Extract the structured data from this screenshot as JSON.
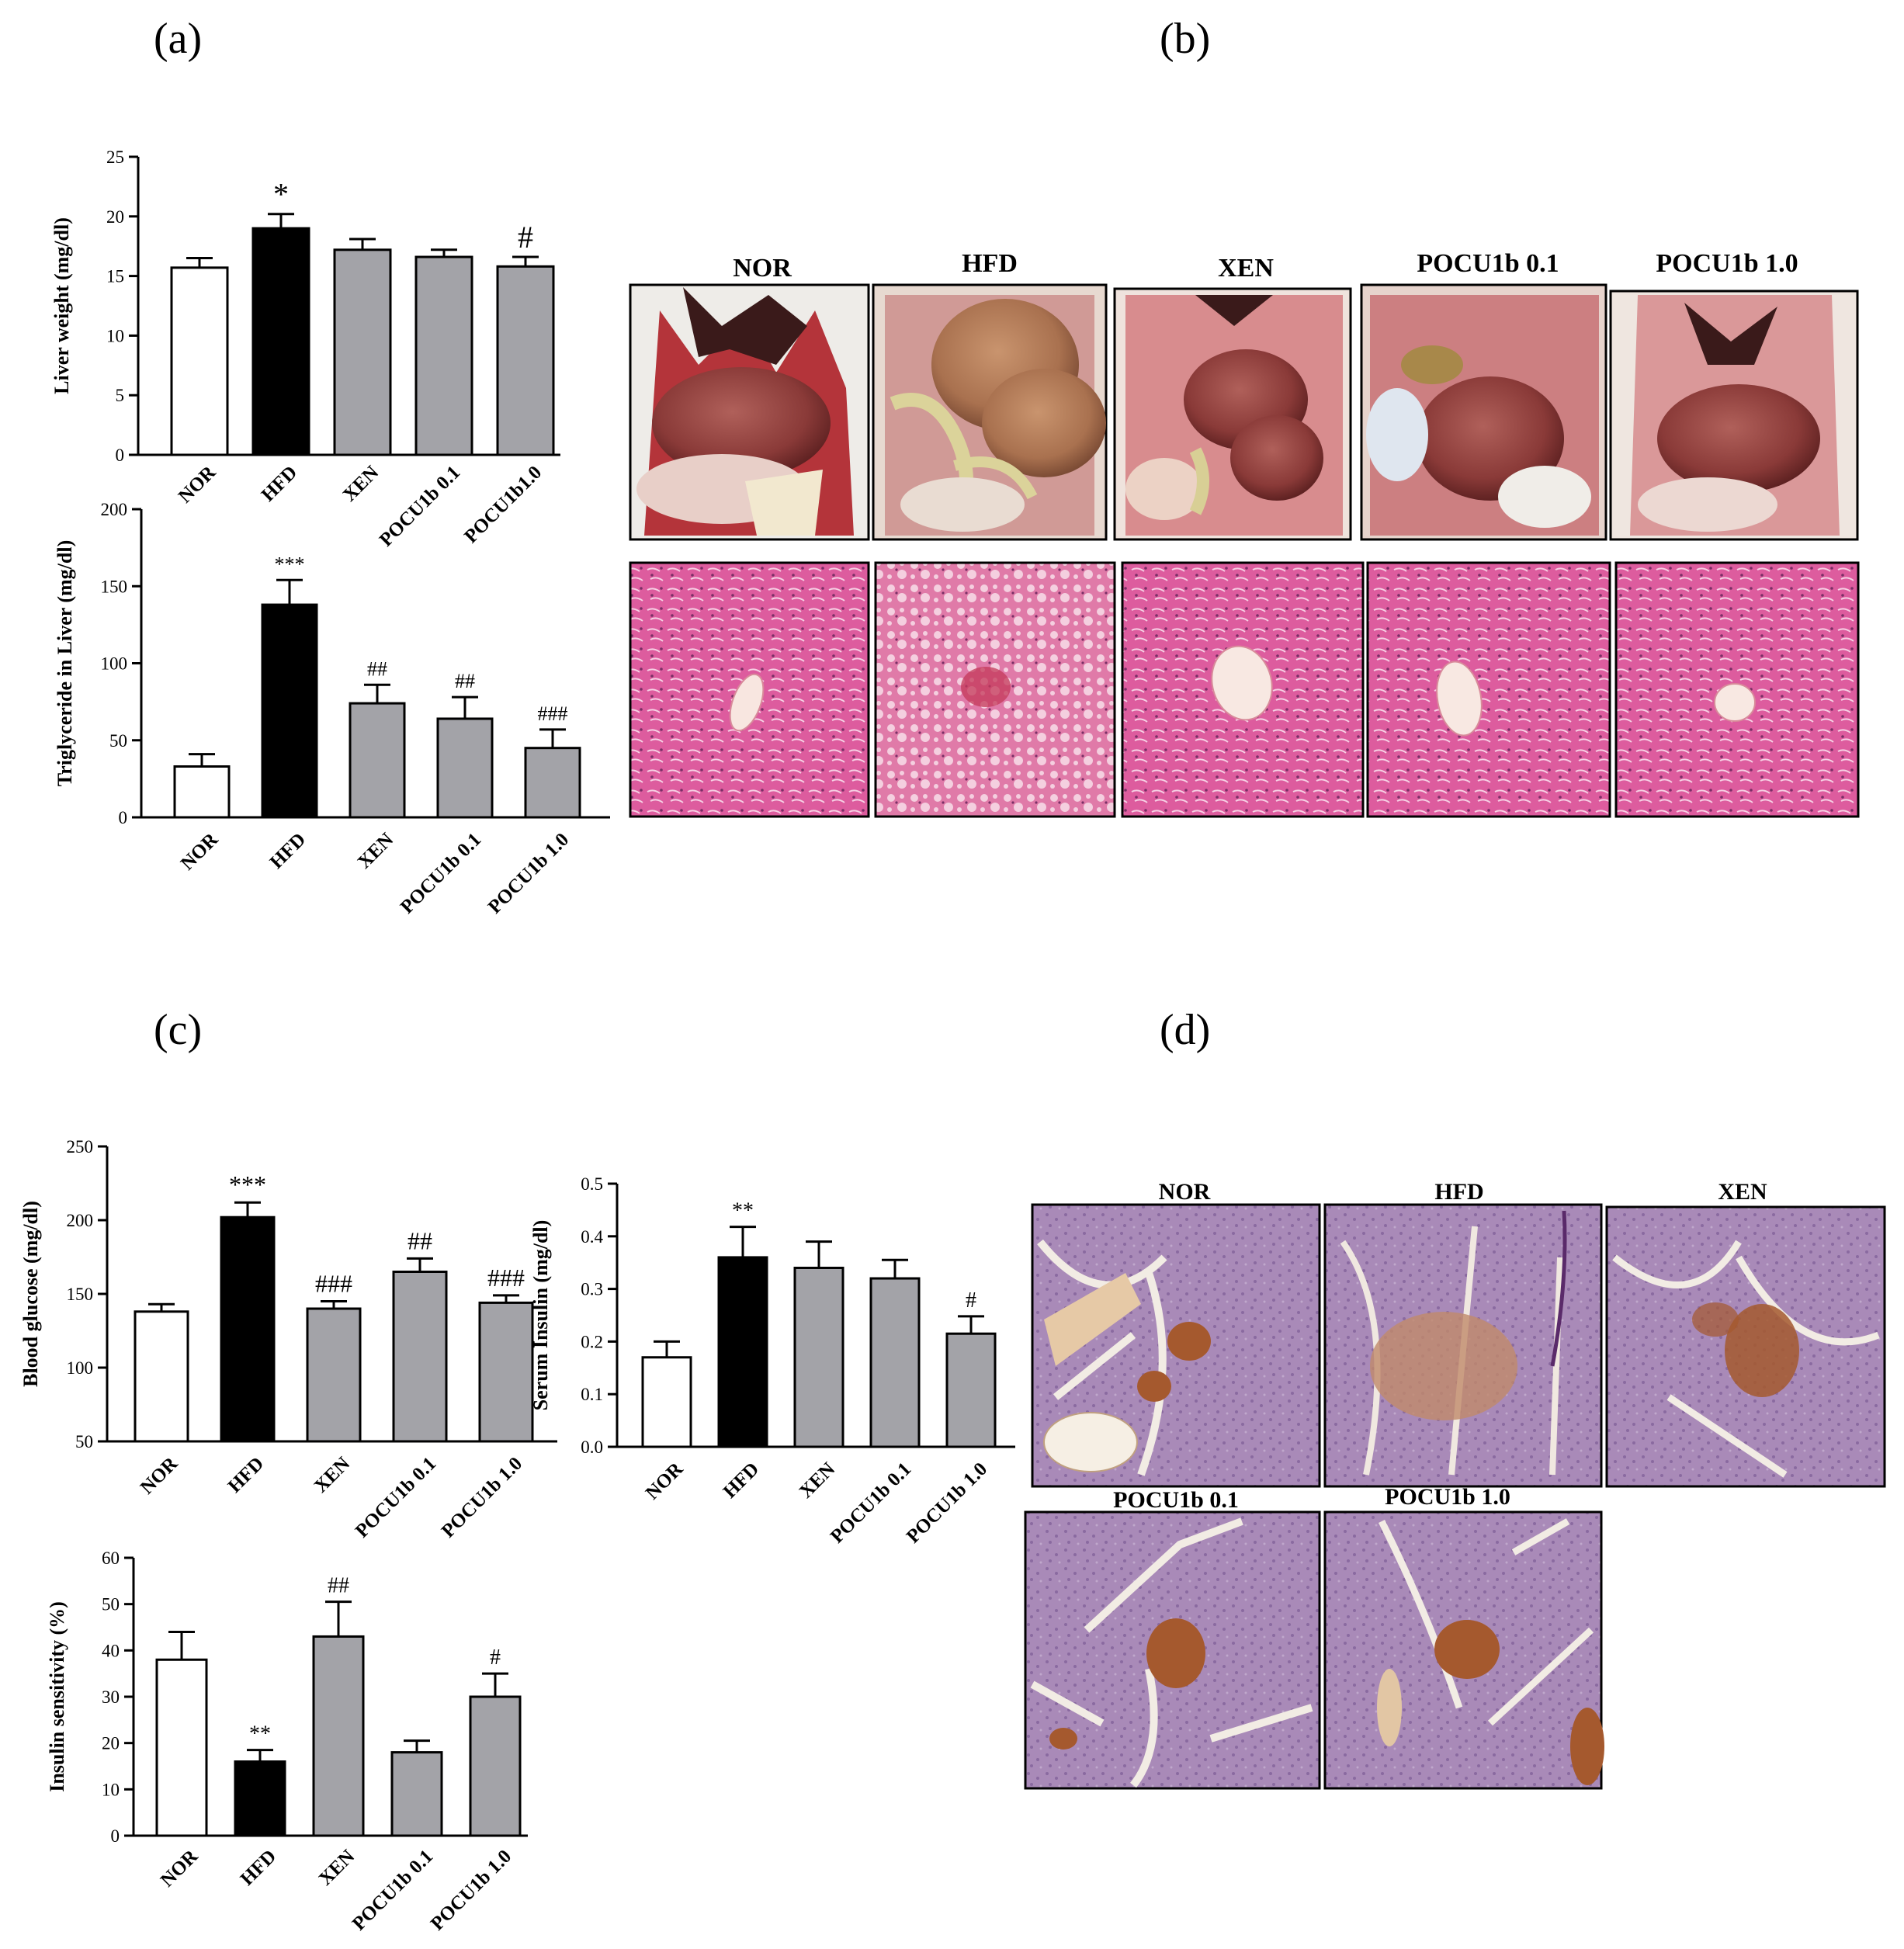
{
  "panel_labels": {
    "a": "(a)",
    "b": "(b)",
    "c": "(c)",
    "d": "(d)"
  },
  "colors": {
    "NOR": "#ffffff",
    "HFD": "#000000",
    "treatment": "#a3a3a8",
    "he_stain": "#dc5b9c",
    "ihc_background": "#a98ab8",
    "ihc_islet": "#a5592e"
  },
  "chart_data": [
    {
      "id": "liver-weight",
      "type": "bar",
      "ylabel": "Liver weight (mg/dl)",
      "categories": [
        "NOR",
        "HFD",
        "XEN",
        "POCU1b 0.1",
        "POCU1b1.0"
      ],
      "values": [
        15.7,
        19.0,
        17.2,
        16.6,
        15.8
      ],
      "errors": [
        0.8,
        1.2,
        0.9,
        0.6,
        0.8
      ],
      "annotations": [
        "",
        "*",
        "",
        "",
        "#"
      ],
      "ylim": [
        0,
        25
      ],
      "yticks": [
        0,
        5,
        10,
        15,
        20,
        25
      ],
      "bar_colors": [
        "NOR",
        "HFD",
        "treatment",
        "treatment",
        "treatment"
      ]
    },
    {
      "id": "liver-triglyceride",
      "type": "bar",
      "ylabel": "Triglyceride in Liver (mg/dl)",
      "categories": [
        "NOR",
        "HFD",
        "XEN",
        "POCU1b 0.1",
        "POCU1b 1.0"
      ],
      "values": [
        33,
        138,
        74,
        64,
        45
      ],
      "errors": [
        8,
        16,
        12,
        14,
        12
      ],
      "annotations": [
        "",
        "***",
        "##",
        "##",
        "###"
      ],
      "ylim": [
        0,
        200
      ],
      "yticks": [
        0,
        50,
        100,
        150,
        200
      ],
      "bar_colors": [
        "NOR",
        "HFD",
        "treatment",
        "treatment",
        "treatment"
      ]
    },
    {
      "id": "blood-glucose",
      "type": "bar",
      "ylabel": "Blood glucose (mg/dl)",
      "categories": [
        "NOR",
        "HFD",
        "XEN",
        "POCU1b 0.1",
        "POCU1b 1.0"
      ],
      "values": [
        138,
        202,
        140,
        165,
        144
      ],
      "errors": [
        5,
        10,
        5,
        9,
        5
      ],
      "annotations": [
        "",
        "***",
        "###",
        "##",
        "###"
      ],
      "ylim": [
        50,
        250
      ],
      "yticks": [
        50,
        100,
        150,
        200,
        250
      ],
      "bar_colors": [
        "NOR",
        "HFD",
        "treatment",
        "treatment",
        "treatment"
      ]
    },
    {
      "id": "serum-insulin",
      "type": "bar",
      "ylabel": "Serum Insulin (mg/dl)",
      "categories": [
        "NOR",
        "HFD",
        "XEN",
        "POCU1b 0.1",
        "POCU1b 1.0"
      ],
      "values": [
        0.17,
        0.36,
        0.34,
        0.32,
        0.215
      ],
      "errors": [
        0.03,
        0.058,
        0.05,
        0.035,
        0.033
      ],
      "annotations": [
        "",
        "**",
        "",
        "",
        "#"
      ],
      "ylim": [
        0,
        0.5
      ],
      "yticks": [
        "0.0",
        "0.1",
        "0.2",
        "0.3",
        "0.4",
        "0.5"
      ],
      "bar_colors": [
        "NOR",
        "HFD",
        "treatment",
        "treatment",
        "treatment"
      ]
    },
    {
      "id": "insulin-sensitivity",
      "type": "bar",
      "ylabel": "Insulin sensitivity (%)",
      "categories": [
        "NOR",
        "HFD",
        "XEN",
        "POCU1b 0.1",
        "POCU1b 1.0"
      ],
      "values": [
        38,
        16,
        43,
        18,
        30
      ],
      "errors": [
        6,
        2.5,
        7.5,
        2.5,
        5
      ],
      "annotations": [
        "",
        "**",
        "##",
        "",
        "#"
      ],
      "ylim": [
        0,
        60
      ],
      "yticks": [
        0,
        10,
        20,
        30,
        40,
        50,
        60
      ],
      "bar_colors": [
        "NOR",
        "HFD",
        "treatment",
        "treatment",
        "treatment"
      ]
    }
  ],
  "photo_panel": {
    "labels": [
      "NOR",
      "HFD",
      "XEN",
      "POCU1b 0.1",
      "POCU1b 1.0"
    ]
  },
  "ihc_panel": {
    "labels": [
      "NOR",
      "HFD",
      "XEN",
      "POCU1b 0.1",
      "POCU1b 1.0"
    ]
  }
}
